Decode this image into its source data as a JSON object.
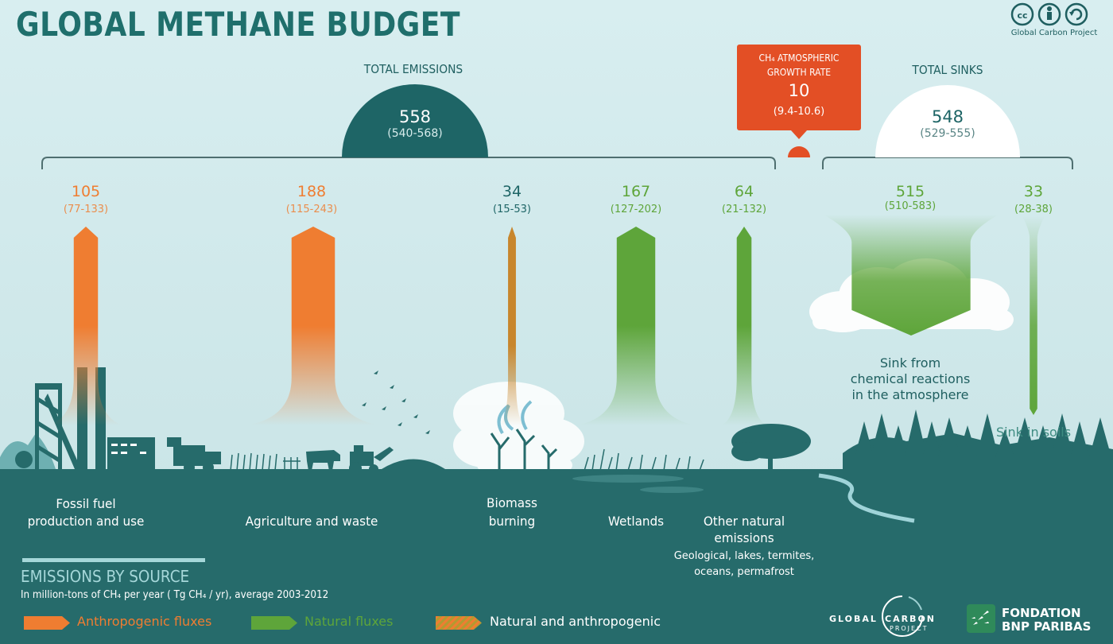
{
  "title": "GLOBAL METHANE BUDGET",
  "attribution": "Global Carbon Project",
  "license_icons": [
    "cc-icon",
    "by-person-icon",
    "sharealike-icon"
  ],
  "total_emissions": {
    "label": "TOTAL EMISSIONS",
    "value": "558",
    "range": "(540-568)"
  },
  "growth_rate": {
    "label_line1": "CH₄ ATMOSPHERIC",
    "label_line2": "GROWTH RATE",
    "value": "10",
    "range": "(9.4-10.6)"
  },
  "total_sinks": {
    "label": "TOTAL SINKS",
    "value": "548",
    "range": "(529-555)"
  },
  "emission_sources": [
    {
      "value": "105",
      "range": "(77-133)",
      "label_line1": "Fossil fuel",
      "label_line2": "production and use",
      "type": "Anthropogenic"
    },
    {
      "value": "188",
      "range": "(115-243)",
      "label_line1": "Agriculture and waste",
      "label_line2": "",
      "type": "Anthropogenic"
    },
    {
      "value": "34",
      "range": "(15-53)",
      "label_line1": "Biomass",
      "label_line2": "burning",
      "type": "Natural and anthropogenic"
    },
    {
      "value": "167",
      "range": "(127-202)",
      "label_line1": "Wetlands",
      "label_line2": "",
      "type": "Natural"
    },
    {
      "value": "64",
      "range": "(21-132)",
      "label_line1": "Other natural",
      "label_line2": "emissions",
      "sub_line1": "Geological, lakes, termites,",
      "sub_line2": "oceans, permafrost",
      "type": "Natural"
    }
  ],
  "sinks": [
    {
      "value": "515",
      "range": "(510-583)",
      "label_line1": "Sink from",
      "label_line2": "chemical reactions",
      "label_line3": "in the atmosphere"
    },
    {
      "value": "33",
      "range": "(28-38)",
      "label_line1": "Sink in soils"
    }
  ],
  "legend": {
    "heading": "EMISSIONS BY SOURCE",
    "units": "In million-tons of CH₄ per year ( Tg CH₄ / yr), average 2003-2012",
    "items": [
      {
        "label": "Anthropogenic fluxes",
        "color": "#ef7d31"
      },
      {
        "label": "Natural fluxes",
        "color": "#5ea53a"
      },
      {
        "label": "Natural and anthropogenic",
        "color": "#d98a2b"
      }
    ]
  },
  "logos": {
    "gcp_left": "GLOBAL",
    "gcp_right": "CARBON",
    "gcp_bottom": "PROJECT",
    "bnp_line1": "FONDATION",
    "bnp_line2": "BNP PARIBAS"
  },
  "colors": {
    "sky": "#cfe7ea",
    "ground": "#266b6b",
    "anthropogenic": "#ef7d31",
    "natural": "#5ea53a",
    "growth": "#e34f25",
    "title": "#1f6f6c"
  }
}
